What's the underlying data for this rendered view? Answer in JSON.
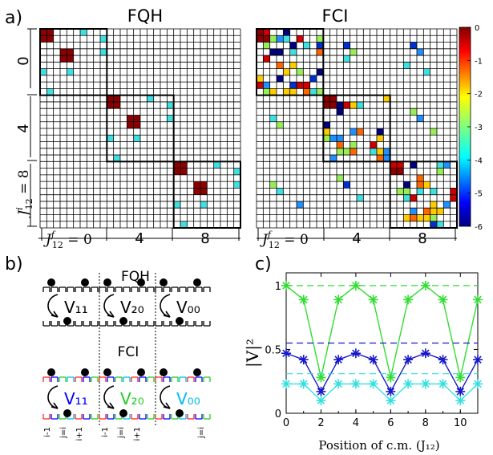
{
  "panels": {
    "a": {
      "letter": "a)",
      "titles": [
        "FQH",
        "FCI"
      ],
      "row_labels": [
        "0",
        "4"
      ],
      "row_label_last_var": "J",
      "row_label_last_sup": "i",
      "row_label_last_sub": "12",
      "row_label_last_eq": " = 8",
      "col_label_var": "J",
      "col_label_sup": "f",
      "col_label_sub": "12",
      "col_label_eq": " = 0",
      "col_labels": [
        "4",
        "8"
      ],
      "colorbar_ticks": [
        "0",
        "-1",
        "-2",
        "-3",
        "-4",
        "-5",
        "-6"
      ]
    },
    "b": {
      "letter": "b)",
      "title_top": "FQH",
      "title_bottom": "FCI",
      "v_labels": [
        "V₁₁",
        "V₂₀",
        "V₀₀"
      ],
      "v_colors": [
        "#0000ff",
        "#22cc22",
        "#00bbee"
      ],
      "index_labels": [
        "i-1",
        "j=i",
        "i+1",
        "i-1",
        "j=i",
        "i+1",
        "j=i"
      ]
    },
    "c": {
      "letter": "c)"
    }
  },
  "chart_data": {
    "type": "line",
    "xlabel": "Position of c.m. (J₁₂)",
    "ylabel": "|V|²",
    "xlim": [
      0,
      11
    ],
    "ylim": [
      0,
      1.1
    ],
    "xticks": [
      "0",
      "2",
      "4",
      "6",
      "8",
      "10"
    ],
    "yticks": [
      "0",
      "0.5",
      "1"
    ],
    "x": [
      0,
      1,
      2,
      3,
      4,
      5,
      6,
      7,
      8,
      9,
      10,
      11
    ],
    "series": [
      {
        "color": "#33dd33",
        "values": [
          1.0,
          0.89,
          0.28,
          0.89,
          1.0,
          0.89,
          0.28,
          0.89,
          1.0,
          0.89,
          0.28,
          0.89
        ],
        "dashed_level": 1.0
      },
      {
        "color": "#1818c8",
        "values": [
          0.47,
          0.42,
          0.17,
          0.42,
          0.47,
          0.42,
          0.17,
          0.42,
          0.47,
          0.42,
          0.17,
          0.42
        ],
        "dashed_level": 0.55
      },
      {
        "color": "#33e0e0",
        "values": [
          0.23,
          0.23,
          0.1,
          0.23,
          0.23,
          0.23,
          0.1,
          0.23,
          0.23,
          0.23,
          0.1,
          0.23
        ],
        "dashed_level": 0.31
      }
    ]
  }
}
